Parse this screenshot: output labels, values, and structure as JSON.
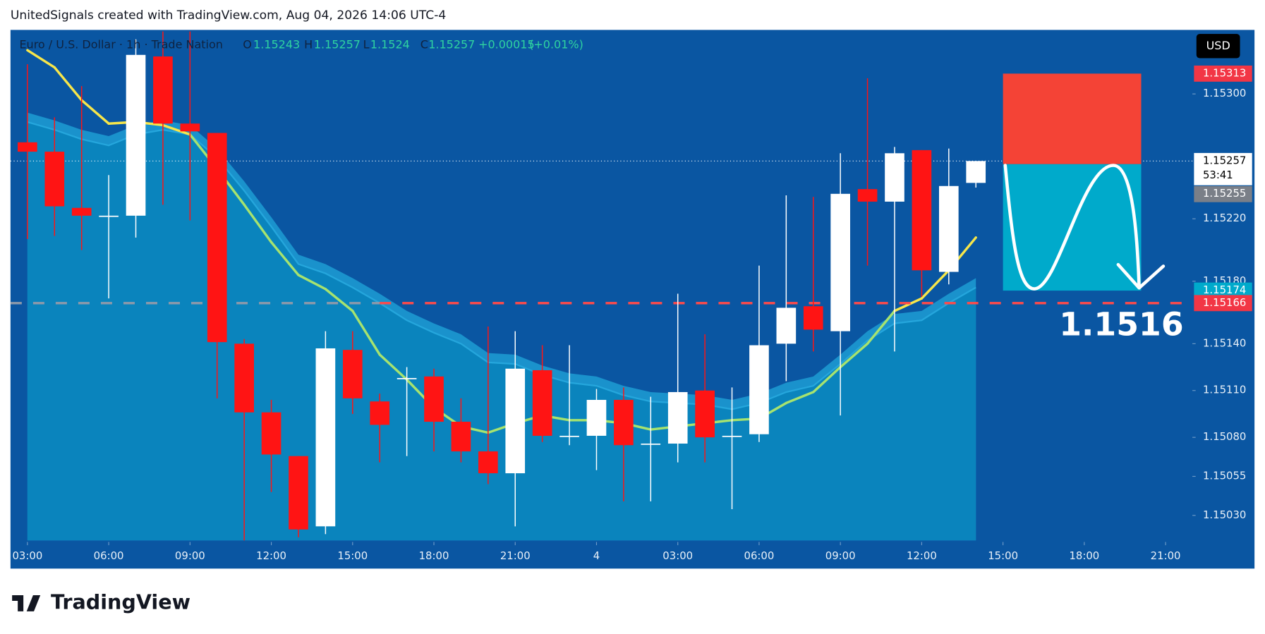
{
  "attribution": "UnitedSignals created with TradingView.com, Aug 04, 2026 14:06 UTC-4",
  "logo": "TradingView",
  "chart_data": {
    "type": "candlestick",
    "title": "Euro / U.S. Dollar · 1h · Trade Nation",
    "legend": {
      "open_label": "O",
      "open": 1.15243,
      "high_label": "H",
      "high": 1.15257,
      "low_label": "L",
      "low": 1.1524,
      "close_label": "C",
      "close": 1.15257,
      "change": {
        "value": 0.00015,
        "label": "+0.00015"
      },
      "change_pct": {
        "value": 0.01,
        "label": "(+0.01%)"
      }
    },
    "currency": "USD",
    "x": [
      0,
      1,
      2,
      3,
      4,
      5,
      6,
      7,
      8,
      9,
      10,
      11,
      12,
      13,
      14,
      15,
      16,
      17,
      18,
      19,
      20,
      21,
      22,
      23,
      24,
      25,
      26,
      27,
      28,
      29,
      30,
      31,
      32,
      33,
      34,
      35
    ],
    "open": [
      1.15269,
      1.15263,
      1.15227,
      1.15222,
      1.15222,
      1.15324,
      1.15281,
      1.15275,
      1.1514,
      1.15096,
      1.15068,
      1.15023,
      1.15136,
      1.15103,
      1.15118,
      1.15119,
      1.1509,
      1.15071,
      1.15057,
      1.15123,
      1.15081,
      1.15081,
      1.15104,
      1.15076,
      1.15076,
      1.1511,
      1.15081,
      1.15082,
      1.1514,
      1.15164,
      1.15148,
      1.15239,
      1.15231,
      1.15264,
      1.15186,
      1.15243
    ],
    "high": [
      1.15319,
      1.15285,
      1.15305,
      1.15248,
      1.15335,
      1.1534,
      1.1534,
      1.15275,
      1.15143,
      1.15104,
      1.15068,
      1.15148,
      1.15148,
      1.15108,
      1.15125,
      1.15124,
      1.15105,
      1.15151,
      1.15148,
      1.15139,
      1.15139,
      1.15111,
      1.15112,
      1.15106,
      1.15172,
      1.15146,
      1.15112,
      1.1519,
      1.15235,
      1.15234,
      1.15262,
      1.1531,
      1.15266,
      1.15264,
      1.15265,
      1.15257
    ],
    "low": [
      1.15207,
      1.15209,
      1.152,
      1.15169,
      1.15208,
      1.15229,
      1.15219,
      1.15105,
      1.15014,
      1.15045,
      1.15016,
      1.15018,
      1.15095,
      1.15064,
      1.15068,
      1.15071,
      1.15064,
      1.1505,
      1.15023,
      1.15077,
      1.15075,
      1.15059,
      1.15039,
      1.15039,
      1.15064,
      1.15064,
      1.15034,
      1.15077,
      1.15116,
      1.15135,
      1.15094,
      1.1519,
      1.15135,
      1.1517,
      1.15178,
      1.1524
    ],
    "close": [
      1.15263,
      1.15228,
      1.15222,
      1.15222,
      1.15325,
      1.15281,
      1.15276,
      1.15141,
      1.15096,
      1.15069,
      1.15021,
      1.15137,
      1.15105,
      1.15088,
      1.15118,
      1.1509,
      1.15071,
      1.15057,
      1.15124,
      1.15081,
      1.15081,
      1.15104,
      1.15075,
      1.15076,
      1.15109,
      1.1508,
      1.15081,
      1.15139,
      1.15163,
      1.15149,
      1.15236,
      1.15231,
      1.15262,
      1.15187,
      1.15241,
      1.15257
    ],
    "up_color": "#ffffff",
    "down_color": "#ff1414",
    "ma": {
      "values": [
        1.15328,
        1.15317,
        1.15296,
        1.15281,
        1.15282,
        1.1528,
        1.15274,
        1.15252,
        1.15229,
        1.15205,
        1.15184,
        1.15175,
        1.15161,
        1.15133,
        1.15117,
        1.15099,
        1.15087,
        1.15083,
        1.15089,
        1.15094,
        1.15091,
        1.15091,
        1.15089,
        1.15085,
        1.15087,
        1.15089,
        1.15091,
        1.15092,
        1.15102,
        1.15109,
        1.15125,
        1.1514,
        1.15161,
        1.15169,
        1.15187,
        1.15208
      ],
      "colors": [
        "#f7e64a",
        "#f7e64a",
        "#f7e64a",
        "#f7e64a",
        "#f7e64a",
        "#f7e64a",
        "#a6e36f",
        "#a6e36f",
        "#a6e36f",
        "#a6e36f",
        "#a6e36f",
        "#a6e36f",
        "#a6e36f",
        "#a6e36f",
        "#a6e36f",
        "#a6e36f",
        "#a6e36f",
        "#a6e36f",
        "#a6e36f",
        "#a6e36f",
        "#a6e36f",
        "#a6e36f",
        "#a6e36f",
        "#a6e36f",
        "#a6e36f",
        "#a6e36f",
        "#a6e36f",
        "#a6e36f",
        "#a6e36f",
        "#a6e36f",
        "#a6e36f",
        "#a6e36f",
        "#f7e64a",
        "#f7e64a",
        "#f7e64a"
      ]
    },
    "band": {
      "upper": [
        1.15288,
        1.15283,
        1.15277,
        1.15273,
        1.1528,
        1.15283,
        1.1528,
        1.15265,
        1.15244,
        1.15221,
        1.15197,
        1.15191,
        1.15182,
        1.15172,
        1.15161,
        1.15153,
        1.15146,
        1.15134,
        1.15133,
        1.15126,
        1.15121,
        1.15119,
        1.15113,
        1.15109,
        1.15108,
        1.15107,
        1.15104,
        1.15108,
        1.15115,
        1.15119,
        1.15133,
        1.15148,
        1.15159,
        1.15161,
        1.15172,
        1.15182
      ],
      "lower": [
        1.15282,
        1.15277,
        1.15271,
        1.15267,
        1.15274,
        1.15277,
        1.15274,
        1.15259,
        1.15238,
        1.15215,
        1.15191,
        1.15185,
        1.15176,
        1.15166,
        1.15155,
        1.15147,
        1.1514,
        1.15128,
        1.15127,
        1.1512,
        1.15115,
        1.15113,
        1.15107,
        1.15103,
        1.15102,
        1.15101,
        1.15098,
        1.15102,
        1.15109,
        1.15113,
        1.15127,
        1.15142,
        1.15153,
        1.15155,
        1.15166,
        1.15176
      ]
    },
    "xlim": [
      -0.625,
      42.9
    ],
    "xticks": [
      {
        "value": 0,
        "label": "03:00"
      },
      {
        "value": 3,
        "label": "06:00"
      },
      {
        "value": 6,
        "label": "09:00"
      },
      {
        "value": 9,
        "label": "12:00"
      },
      {
        "value": 12,
        "label": "15:00"
      },
      {
        "value": 15,
        "label": "18:00"
      },
      {
        "value": 18,
        "label": "21:00"
      },
      {
        "value": 21,
        "label": "4"
      },
      {
        "value": 24,
        "label": "03:00"
      },
      {
        "value": 27,
        "label": "06:00"
      },
      {
        "value": 30,
        "label": "09:00"
      },
      {
        "value": 33,
        "label": "12:00"
      },
      {
        "value": 36,
        "label": "15:00"
      },
      {
        "value": 39,
        "label": "18:00"
      },
      {
        "value": 42,
        "label": "21:00"
      }
    ],
    "ylim": [
      1.15014,
      1.15341
    ],
    "yticks": [
      {
        "value": 1.153,
        "label": "1.15300"
      },
      {
        "value": 1.1522,
        "label": "1.15220"
      },
      {
        "value": 1.1518,
        "label": "1.15180"
      },
      {
        "value": 1.1514,
        "label": "1.15140"
      },
      {
        "value": 1.1511,
        "label": "1.15110"
      },
      {
        "value": 1.1508,
        "label": "1.15080"
      },
      1.15055,
      {
        "value": 1.1503,
        "label": "1.15030"
      }
    ],
    "price_line": 1.15166,
    "current_price": {
      "value": 1.15257,
      "countdown": "53:41"
    },
    "position": {
      "start": 36,
      "end": 41.1,
      "stop": 1.15313,
      "entry": 1.15255,
      "target": 1.15174
    },
    "annotation": "1.1516"
  }
}
